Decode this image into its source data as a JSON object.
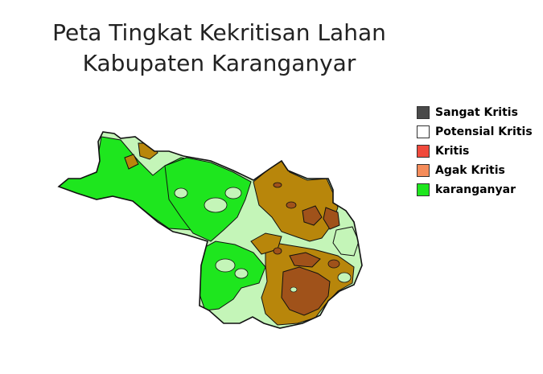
{
  "title": {
    "line1": "Peta Tingkat Kekritisan Lahan",
    "line2": "Kabupaten Karanganyar"
  },
  "legend": {
    "items": [
      {
        "label": "Sangat Kritis",
        "color": "#4a4a4a"
      },
      {
        "label": "Potensial Kritis",
        "color": "#ffffff"
      },
      {
        "label": "Kritis",
        "color": "#f04a3c"
      },
      {
        "label": "Agak Kritis",
        "color": "#f58c5a"
      },
      {
        "label": "karanganyar",
        "color": "#1ee61e"
      }
    ]
  },
  "map_colors": {
    "green": "#1ee61e",
    "light_green": "#c4f5b8",
    "olive": "#b8860b",
    "brown": "#a0521a",
    "outline": "#111111"
  }
}
